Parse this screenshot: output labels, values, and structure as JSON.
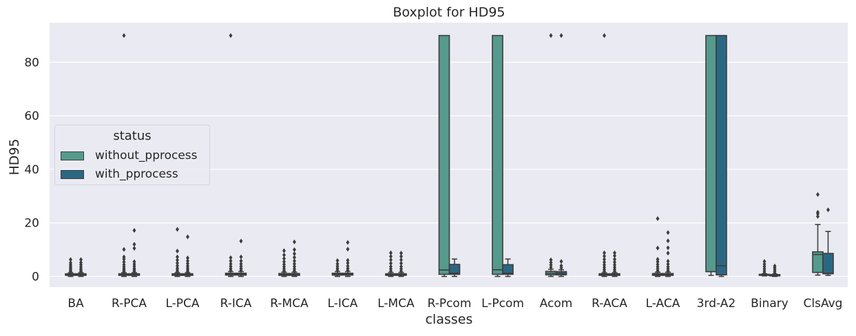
{
  "chart_data": {
    "type": "boxplot",
    "title": "Boxplot for HD95",
    "xlabel": "classes",
    "ylabel": "HD95",
    "ylim": [
      -4,
      94
    ],
    "yticks": [
      0,
      20,
      40,
      60,
      80
    ],
    "grid": true,
    "legend": {
      "title": "status",
      "placement": "center-left",
      "entries": [
        "without_pprocess",
        "with_pprocess"
      ]
    },
    "categories": [
      "BA",
      "R-PCA",
      "L-PCA",
      "R-ICA",
      "R-MCA",
      "L-ICA",
      "L-MCA",
      "R-Pcom",
      "L-Pcom",
      "Acom",
      "R-ACA",
      "L-ACA",
      "3rd-A2",
      "Binary",
      "ClsAvg"
    ],
    "series": [
      {
        "name": "without_pprocess",
        "color": "#559a8c",
        "boxes": [
          {
            "q1": 0.4,
            "median": 0.7,
            "q3": 1.0,
            "whislo": 0.0,
            "whishi": 1.4,
            "fliers": [
              1.8,
              2.2,
              2.7,
              3.2,
              3.8,
              4.4,
              5.1,
              6.3
            ]
          },
          {
            "q1": 0.4,
            "median": 0.7,
            "q3": 1.0,
            "whislo": 0.0,
            "whishi": 1.4,
            "fliers": [
              1.8,
              2.3,
              2.9,
              3.6,
              4.4,
              5.4,
              6.5,
              7.3,
              10.1,
              90
            ]
          },
          {
            "q1": 0.4,
            "median": 0.7,
            "q3": 1.0,
            "whislo": 0.0,
            "whishi": 1.4,
            "fliers": [
              1.8,
              2.4,
              3.1,
              4.0,
              5.0,
              6.1,
              7.3,
              9.5,
              17.6
            ]
          },
          {
            "q1": 0.5,
            "median": 0.8,
            "q3": 1.2,
            "whislo": 0.0,
            "whishi": 1.8,
            "fliers": [
              2.3,
              3.0,
              3.8,
              4.7,
              5.8,
              7.0,
              90
            ]
          },
          {
            "q1": 0.4,
            "median": 0.7,
            "q3": 1.1,
            "whislo": 0.0,
            "whishi": 1.6,
            "fliers": [
              2.1,
              2.8,
              3.6,
              4.5,
              5.5,
              6.7,
              8.0,
              9.6
            ]
          },
          {
            "q1": 0.5,
            "median": 0.8,
            "q3": 1.2,
            "whislo": 0.0,
            "whishi": 1.8,
            "fliers": [
              2.3,
              3.0,
              3.8,
              4.7,
              5.9
            ]
          },
          {
            "q1": 0.4,
            "median": 0.7,
            "q3": 1.0,
            "whislo": 0.0,
            "whishi": 1.5,
            "fliers": [
              2.0,
              2.8,
              3.7,
              4.9,
              6.2,
              7.5,
              8.8
            ]
          },
          {
            "q1": 0.8,
            "median": 2.4,
            "q3": 90.0,
            "whislo": 0.0,
            "whishi": 90.0,
            "fliers": []
          },
          {
            "q1": 0.8,
            "median": 2.5,
            "q3": 90.0,
            "whislo": 0.0,
            "whishi": 90.0,
            "fliers": []
          },
          {
            "q1": 0.6,
            "median": 1.2,
            "q3": 1.9,
            "whislo": 0.0,
            "whishi": 2.7,
            "fliers": [
              3.4,
              4.3,
              5.2,
              6.2,
              90
            ]
          },
          {
            "q1": 0.4,
            "median": 0.7,
            "q3": 1.0,
            "whislo": 0.0,
            "whishi": 1.4,
            "fliers": [
              1.9,
              2.6,
              3.4,
              4.3,
              5.3,
              6.4,
              7.6,
              8.8,
              90
            ]
          },
          {
            "q1": 0.4,
            "median": 0.7,
            "q3": 1.1,
            "whislo": 0.0,
            "whishi": 1.6,
            "fliers": [
              2.1,
              2.8,
              3.6,
              4.5,
              5.5,
              6.4,
              10.6,
              21.6
            ]
          },
          {
            "q1": 1.8,
            "median": 1.8,
            "q3": 90.0,
            "whislo": 0.4,
            "whishi": 90.0,
            "fliers": []
          },
          {
            "q1": 0.4,
            "median": 0.6,
            "q3": 0.8,
            "whislo": 0.2,
            "whishi": 1.0,
            "fliers": [
              1.3,
              2.0,
              2.8,
              3.7,
              4.6,
              5.6
            ]
          },
          {
            "q1": 1.5,
            "median": 8.2,
            "q3": 9.2,
            "whislo": 0.5,
            "whishi": 19.4,
            "fliers": [
              22.4,
              23.4,
              24.0,
              30.6
            ]
          }
        ]
      },
      {
        "name": "with_pprocess",
        "color": "#2b6783",
        "boxes": [
          {
            "q1": 0.4,
            "median": 0.7,
            "q3": 1.0,
            "whislo": 0.0,
            "whishi": 1.4,
            "fliers": [
              1.8,
              2.3,
              2.9,
              3.6,
              4.4,
              5.2,
              6.3
            ]
          },
          {
            "q1": 0.4,
            "median": 0.7,
            "q3": 1.0,
            "whislo": 0.0,
            "whishi": 1.4,
            "fliers": [
              1.8,
              2.4,
              3.0,
              3.8,
              4.6,
              5.5,
              10.5,
              12.0,
              17.2
            ]
          },
          {
            "q1": 0.4,
            "median": 0.7,
            "q3": 1.0,
            "whislo": 0.0,
            "whishi": 1.4,
            "fliers": [
              1.8,
              2.4,
              3.1,
              3.9,
              4.8,
              5.8,
              6.9,
              14.8
            ]
          },
          {
            "q1": 0.5,
            "median": 0.8,
            "q3": 1.2,
            "whislo": 0.0,
            "whishi": 1.8,
            "fliers": [
              2.3,
              3.0,
              3.8,
              4.7,
              5.8,
              7.3,
              13.2
            ]
          },
          {
            "q1": 0.4,
            "median": 0.7,
            "q3": 1.1,
            "whislo": 0.0,
            "whishi": 1.6,
            "fliers": [
              2.1,
              2.8,
              3.7,
              4.7,
              5.8,
              7.1,
              8.5,
              10.0,
              12.9
            ]
          },
          {
            "q1": 0.5,
            "median": 0.8,
            "q3": 1.2,
            "whislo": 0.0,
            "whishi": 1.8,
            "fliers": [
              2.3,
              3.0,
              3.9,
              5.0,
              6.0,
              10.2,
              12.7
            ]
          },
          {
            "q1": 0.4,
            "median": 0.7,
            "q3": 1.0,
            "whislo": 0.0,
            "whishi": 1.5,
            "fliers": [
              2.0,
              2.8,
              3.7,
              4.9,
              6.2,
              7.5,
              8.7
            ]
          },
          {
            "q1": 0.8,
            "median": 1.2,
            "q3": 4.5,
            "whislo": 0.0,
            "whishi": 6.5,
            "fliers": []
          },
          {
            "q1": 0.8,
            "median": 1.2,
            "q3": 4.4,
            "whislo": 0.0,
            "whishi": 6.5,
            "fliers": []
          },
          {
            "q1": 0.6,
            "median": 1.1,
            "q3": 1.8,
            "whislo": 0.0,
            "whishi": 2.5,
            "fliers": [
              3.2,
              4.0,
              5.6,
              90
            ]
          },
          {
            "q1": 0.4,
            "median": 0.7,
            "q3": 1.0,
            "whislo": 0.0,
            "whishi": 1.4,
            "fliers": [
              1.9,
              2.6,
              3.4,
              4.3,
              5.3,
              6.4,
              7.7,
              8.8
            ]
          },
          {
            "q1": 0.4,
            "median": 0.7,
            "q3": 1.1,
            "whislo": 0.0,
            "whishi": 1.6,
            "fliers": [
              2.1,
              2.8,
              3.6,
              4.6,
              5.7,
              8.7,
              10.7,
              13.3,
              16.4
            ]
          },
          {
            "q1": 0.6,
            "median": 4.0,
            "q3": 90.0,
            "whislo": 0.0,
            "whishi": 90.0,
            "fliers": []
          },
          {
            "q1": 0.2,
            "median": 0.5,
            "q3": 0.7,
            "whislo": 0.0,
            "whishi": 0.9,
            "fliers": [
              1.2,
              1.8,
              2.5,
              3.2,
              3.9
            ]
          },
          {
            "q1": 1.0,
            "median": 1.2,
            "q3": 8.6,
            "whislo": 0.4,
            "whishi": 16.8,
            "fliers": [
              24.9
            ]
          }
        ]
      }
    ]
  }
}
